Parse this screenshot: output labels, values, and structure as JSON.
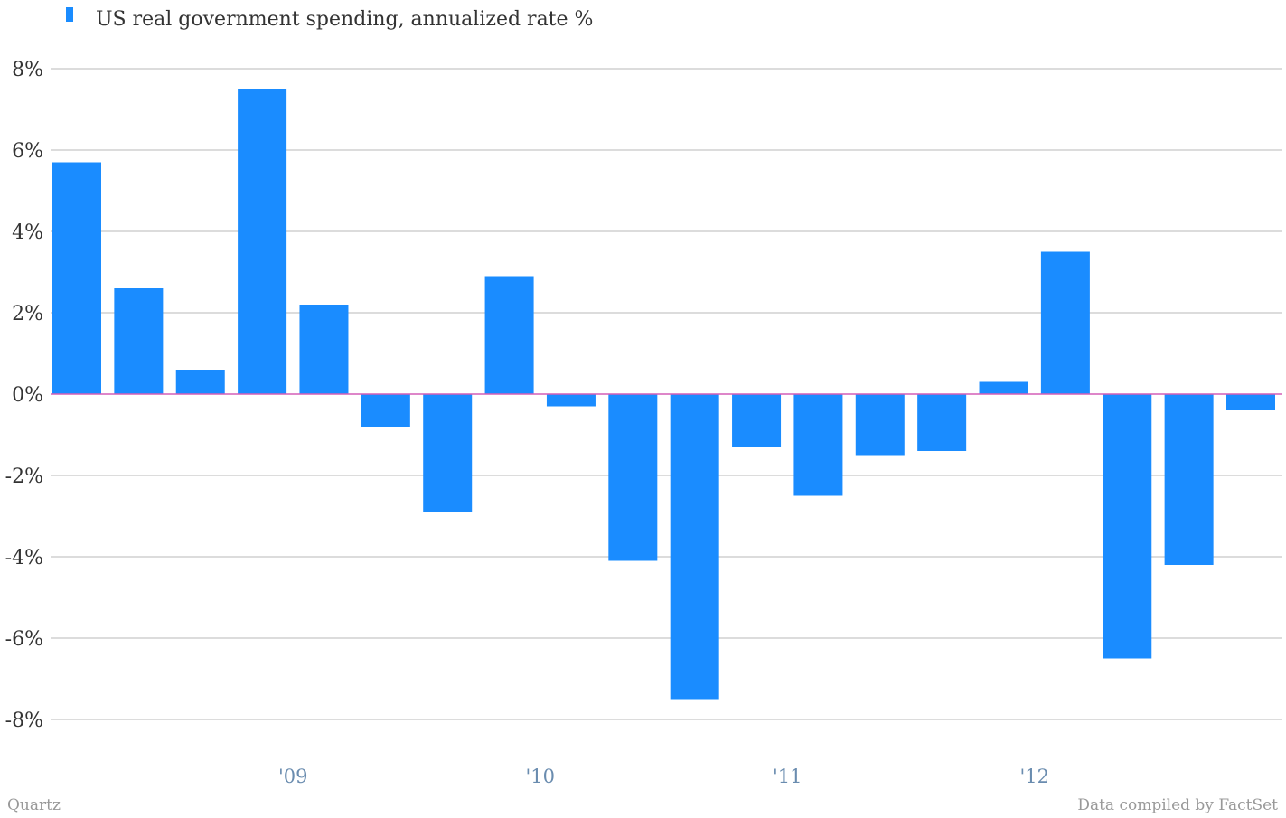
{
  "chart_data": {
    "type": "bar",
    "title": "",
    "xlabel": "",
    "ylabel": "",
    "ylim": [
      -8,
      8
    ],
    "y_ticks": [
      8,
      6,
      4,
      2,
      0,
      -2,
      -4,
      -6,
      -8
    ],
    "y_tick_labels": [
      "8%",
      "6%",
      "4%",
      "2%",
      "0%",
      "-2%",
      "-4%",
      "-6%",
      "-8%"
    ],
    "x_tick_labels": [
      "'09",
      "'10",
      "'11",
      "'12"
    ],
    "x_tick_positions": [
      3.5,
      7.5,
      11.5,
      15.5
    ],
    "legend_position": "top-left",
    "bar_color": "#1a8cff",
    "zero_line_color": "#d35fb7",
    "grid": true,
    "series": [
      {
        "name": "US real government spending, annualized rate %",
        "values": [
          5.7,
          2.6,
          0.6,
          7.5,
          2.2,
          -0.8,
          -2.9,
          2.9,
          -0.3,
          -4.1,
          -7.5,
          -1.3,
          -2.5,
          -1.5,
          -1.4,
          0.3,
          3.5,
          -6.5,
          -4.2,
          -0.4
        ]
      }
    ]
  },
  "footer": {
    "source_left": "Quartz",
    "source_right": "Data compiled by FactSet"
  }
}
